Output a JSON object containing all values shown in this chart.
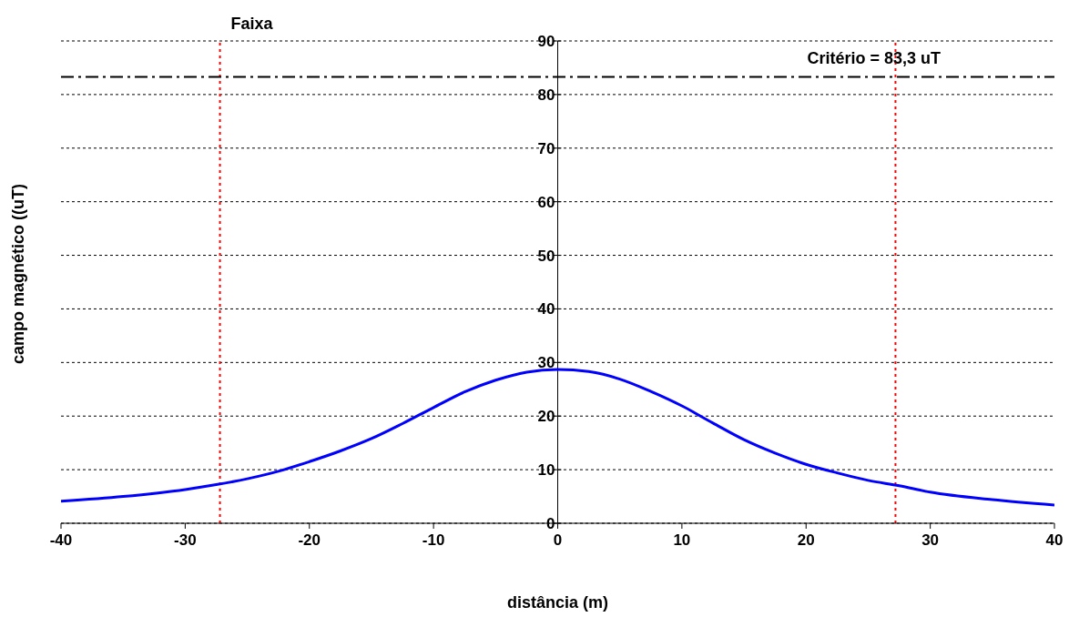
{
  "chart_data": {
    "type": "line",
    "xlabel": "distância (m)",
    "ylabel": "campo magnético ((uT)",
    "series": [
      {
        "color": "#0000ff",
        "x": [
          -40,
          -35,
          -30,
          -27.5,
          -25,
          -22.5,
          -20,
          -17.5,
          -15,
          -12.5,
          -10,
          -7.5,
          -5,
          -2.5,
          0,
          2.5,
          5,
          7.5,
          10,
          12.5,
          15,
          17.5,
          20,
          22.5,
          25,
          27.5,
          30,
          35,
          40
        ],
        "values": [
          4.1,
          5.0,
          6.3,
          7.2,
          8.3,
          9.7,
          11.5,
          13.5,
          15.8,
          18.6,
          21.6,
          24.5,
          26.7,
          28.2,
          28.7,
          28.3,
          26.9,
          24.6,
          21.9,
          18.7,
          15.6,
          13.1,
          11.0,
          9.4,
          8.0,
          7.0,
          5.8,
          4.4,
          3.4
        ]
      }
    ],
    "xlim": [
      -40,
      40
    ],
    "xticks": [
      -40,
      -30,
      -20,
      -10,
      0,
      10,
      20,
      30,
      40
    ],
    "ylim": [
      0,
      90
    ],
    "yticks": [
      0,
      10,
      20,
      30,
      40,
      50,
      60,
      70,
      80,
      90
    ],
    "grid": "y",
    "legend": false,
    "marker": "none",
    "line_style": "solid",
    "ref_lines": [
      {
        "axis": "x",
        "value": -27.2,
        "label": "Faixa",
        "color": "#ff0000",
        "line_style": "dotted"
      },
      {
        "axis": "x",
        "value": 27.2,
        "color": "#ff0000",
        "line_style": "dotted"
      },
      {
        "axis": "y",
        "value": 83.3,
        "label": "Critério = 83,3 uT",
        "color": "#000000",
        "line_style": "dashdot"
      }
    ]
  }
}
